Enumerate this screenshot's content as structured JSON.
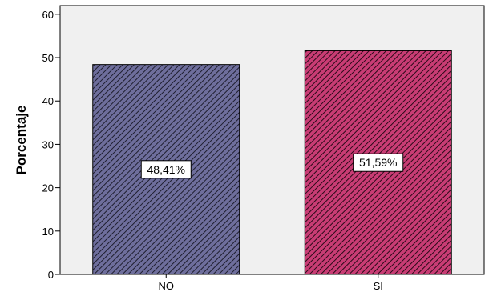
{
  "chart_data": {
    "type": "bar",
    "title": "",
    "xlabel": "",
    "ylabel": "Porcentaje",
    "categories": [
      "NO",
      "SI"
    ],
    "values": [
      48.41,
      51.59
    ],
    "data_labels": [
      "48,41%",
      "51,59%"
    ],
    "ylim": [
      0,
      60
    ],
    "yticks": [
      0,
      10,
      20,
      30,
      40,
      50,
      60
    ],
    "grid": false,
    "legend": "none",
    "plot_background": "#f0f0f0",
    "bar_colors": [
      "#6e6e9c",
      "#c83c74"
    ],
    "hatch": "diagonal-lines"
  }
}
